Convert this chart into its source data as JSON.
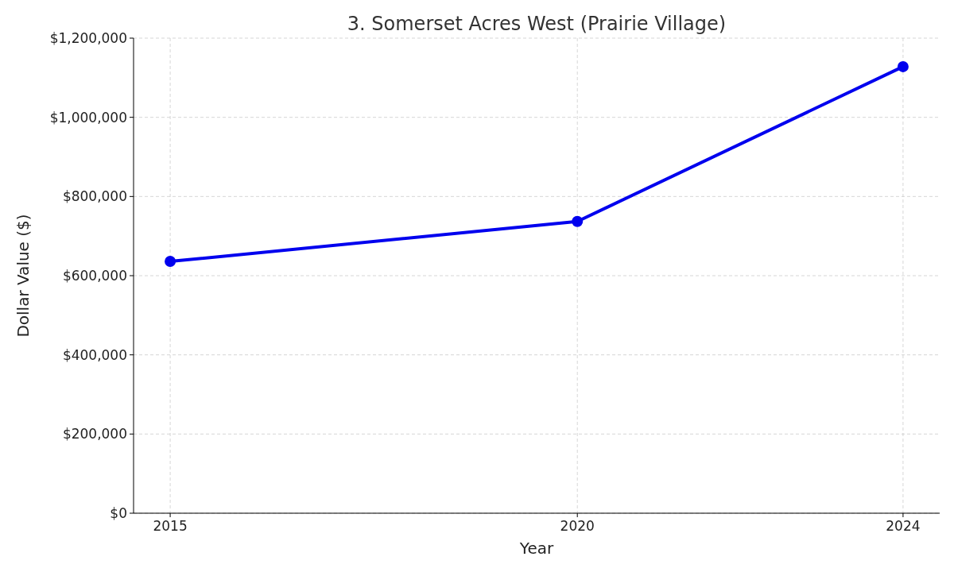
{
  "chart_data": {
    "type": "line",
    "title": "3. Somerset Acres West (Prairie Village)",
    "xlabel": "Year",
    "ylabel": "Dollar Value ($)",
    "x": [
      2015,
      2020,
      2024
    ],
    "series": [
      {
        "color": "#0000ee",
        "values": [
          636000,
          737000,
          1128000
        ]
      }
    ],
    "xlim": [
      2014.55,
      2024.45
    ],
    "xticks": [
      2015,
      2020,
      2024
    ],
    "ylim": [
      0,
      1200000
    ],
    "yticks": [
      {
        "value": 0,
        "label": "$0"
      },
      {
        "value": 200000,
        "label": "$200,000"
      },
      {
        "value": 400000,
        "label": "$400,000"
      },
      {
        "value": 600000,
        "label": "$600,000"
      },
      {
        "value": 800000,
        "label": "$800,000"
      },
      {
        "value": 1000000,
        "label": "$1,000,000"
      },
      {
        "value": 1200000,
        "label": "$1,200,000"
      }
    ],
    "grid": true,
    "marker": "circle",
    "line_style": "solid"
  }
}
